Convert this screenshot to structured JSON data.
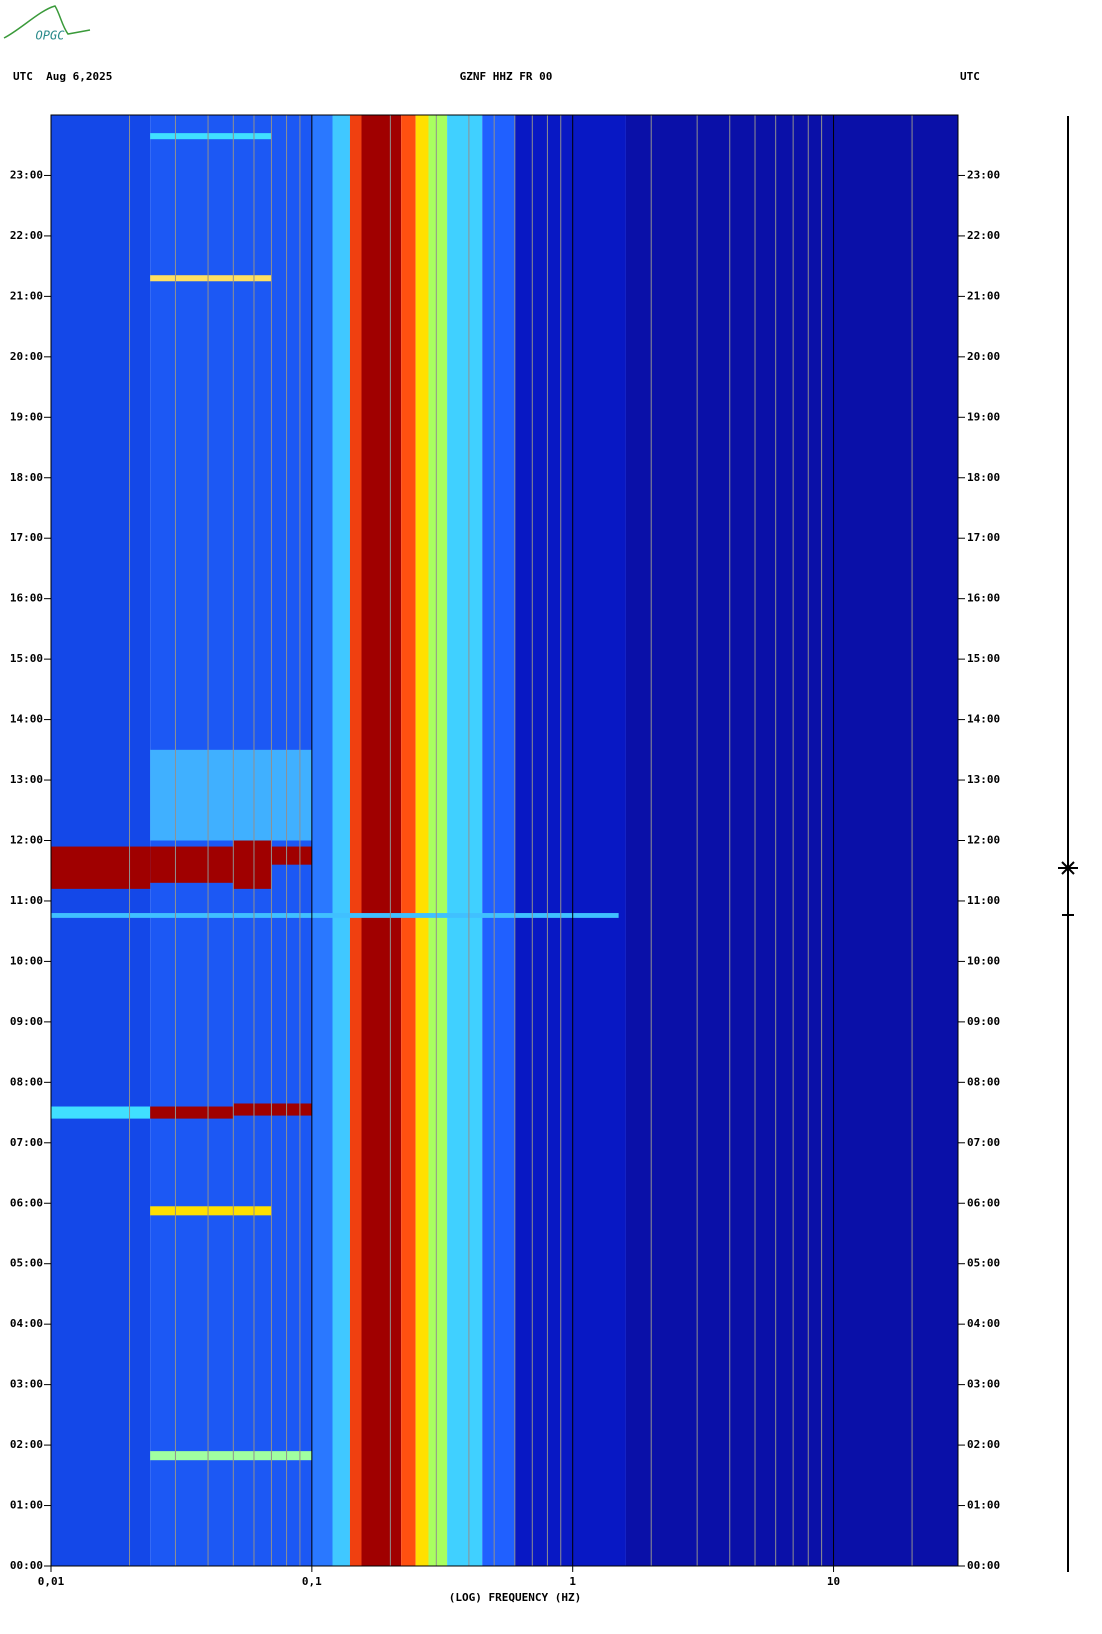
{
  "chart_data": {
    "type": "spectrogram",
    "logo": "OPGC",
    "header_left": "UTC  Aug 6,2025",
    "title": "GZNF HHZ FR 00",
    "header_right": "UTC",
    "x_label": "(LOG) FREQUENCY (HZ)",
    "x_log": true,
    "xlim": [
      0.01,
      30
    ],
    "xticks": [
      {
        "value": 0.01,
        "label": "0,01"
      },
      {
        "value": 0.1,
        "label": "0,1"
      },
      1,
      10
    ],
    "xminorticks": [
      0.02,
      0.03,
      0.04,
      0.05,
      0.06,
      0.07,
      0.08,
      0.09,
      0.2,
      0.3,
      0.4,
      0.5,
      0.6,
      0.7,
      0.8,
      0.9,
      2,
      3,
      4,
      5,
      6,
      7,
      8,
      9,
      20
    ],
    "ylim": [
      0,
      24
    ],
    "yticks": [
      {
        "value": 0,
        "label": "00:00"
      },
      {
        "value": 1,
        "label": "01:00"
      },
      {
        "value": 2,
        "label": "02:00"
      },
      {
        "value": 3,
        "label": "03:00"
      },
      {
        "value": 4,
        "label": "04:00"
      },
      {
        "value": 5,
        "label": "05:00"
      },
      {
        "value": 6,
        "label": "06:00"
      },
      {
        "value": 7,
        "label": "07:00"
      },
      {
        "value": 8,
        "label": "08:00"
      },
      {
        "value": 9,
        "label": "09:00"
      },
      {
        "value": 10,
        "label": "10:00"
      },
      {
        "value": 11,
        "label": "11:00"
      },
      {
        "value": 12,
        "label": "12:00"
      },
      {
        "value": 13,
        "label": "13:00"
      },
      {
        "value": 14,
        "label": "14:00"
      },
      {
        "value": 15,
        "label": "15:00"
      },
      {
        "value": 16,
        "label": "16:00"
      },
      {
        "value": 17,
        "label": "17:00"
      },
      {
        "value": 18,
        "label": "18:00"
      },
      {
        "value": 19,
        "label": "19:00"
      },
      {
        "value": 20,
        "label": "20:00"
      },
      {
        "value": 21,
        "label": "21:00"
      },
      {
        "value": 22,
        "label": "22:00"
      },
      {
        "value": 23,
        "label": "23:00"
      }
    ],
    "bands": [
      {
        "from": 0.01,
        "to": 0.024,
        "color": "#1448e8"
      },
      {
        "from": 0.024,
        "to": 0.1,
        "color": "#1c58f4"
      },
      {
        "from": 0.1,
        "to": 0.12,
        "color": "#2a78ff"
      },
      {
        "from": 0.12,
        "to": 0.14,
        "color": "#40c8ff"
      },
      {
        "from": 0.14,
        "to": 0.155,
        "color": "#f04010"
      },
      {
        "from": 0.155,
        "to": 0.22,
        "color": "#a00000"
      },
      {
        "from": 0.22,
        "to": 0.25,
        "color": "#ff5010"
      },
      {
        "from": 0.25,
        "to": 0.28,
        "color": "#ffe000"
      },
      {
        "from": 0.28,
        "to": 0.33,
        "color": "#a8ff60"
      },
      {
        "from": 0.33,
        "to": 0.45,
        "color": "#40d0ff"
      },
      {
        "from": 0.45,
        "to": 0.6,
        "color": "#2060ff"
      },
      {
        "from": 0.6,
        "to": 1.6,
        "color": "#0818c4"
      },
      {
        "from": 1.6,
        "to": 30,
        "color": "#0a10a8"
      }
    ],
    "events": [
      {
        "start": 12.0,
        "end": 13.5,
        "fmin": 0.024,
        "fmax": 0.1,
        "color": "#40b0ff"
      },
      {
        "start": 11.2,
        "end": 11.9,
        "fmin": 0.01,
        "fmax": 0.024,
        "color": "#a00000"
      },
      {
        "start": 11.3,
        "end": 11.9,
        "fmin": 0.024,
        "fmax": 0.05,
        "color": "#a00000"
      },
      {
        "start": 11.2,
        "end": 12.0,
        "fmin": 0.05,
        "fmax": 0.07,
        "color": "#a00000"
      },
      {
        "start": 11.6,
        "end": 11.9,
        "fmin": 0.07,
        "fmax": 0.1,
        "color": "#a00000"
      },
      {
        "start": 10.72,
        "end": 10.8,
        "fmin": 0.01,
        "fmax": 1.5,
        "color": "#40c0ff"
      },
      {
        "start": 7.4,
        "end": 7.6,
        "fmin": 0.01,
        "fmax": 0.024,
        "color": "#40e0ff"
      },
      {
        "start": 7.4,
        "end": 7.6,
        "fmin": 0.024,
        "fmax": 0.05,
        "color": "#a00000"
      },
      {
        "start": 7.45,
        "end": 7.65,
        "fmin": 0.05,
        "fmax": 0.1,
        "color": "#a00000"
      },
      {
        "start": 5.8,
        "end": 5.95,
        "fmin": 0.024,
        "fmax": 0.07,
        "color": "#ffe000"
      },
      {
        "start": 1.75,
        "end": 1.9,
        "fmin": 0.024,
        "fmax": 0.1,
        "color": "#a0ffa0"
      },
      {
        "start": 21.25,
        "end": 21.35,
        "fmin": 0.024,
        "fmax": 0.07,
        "color": "#ffe060"
      },
      {
        "start": 23.6,
        "end": 23.7,
        "fmin": 0.024,
        "fmax": 0.07,
        "color": "#40e0ff"
      }
    ]
  }
}
